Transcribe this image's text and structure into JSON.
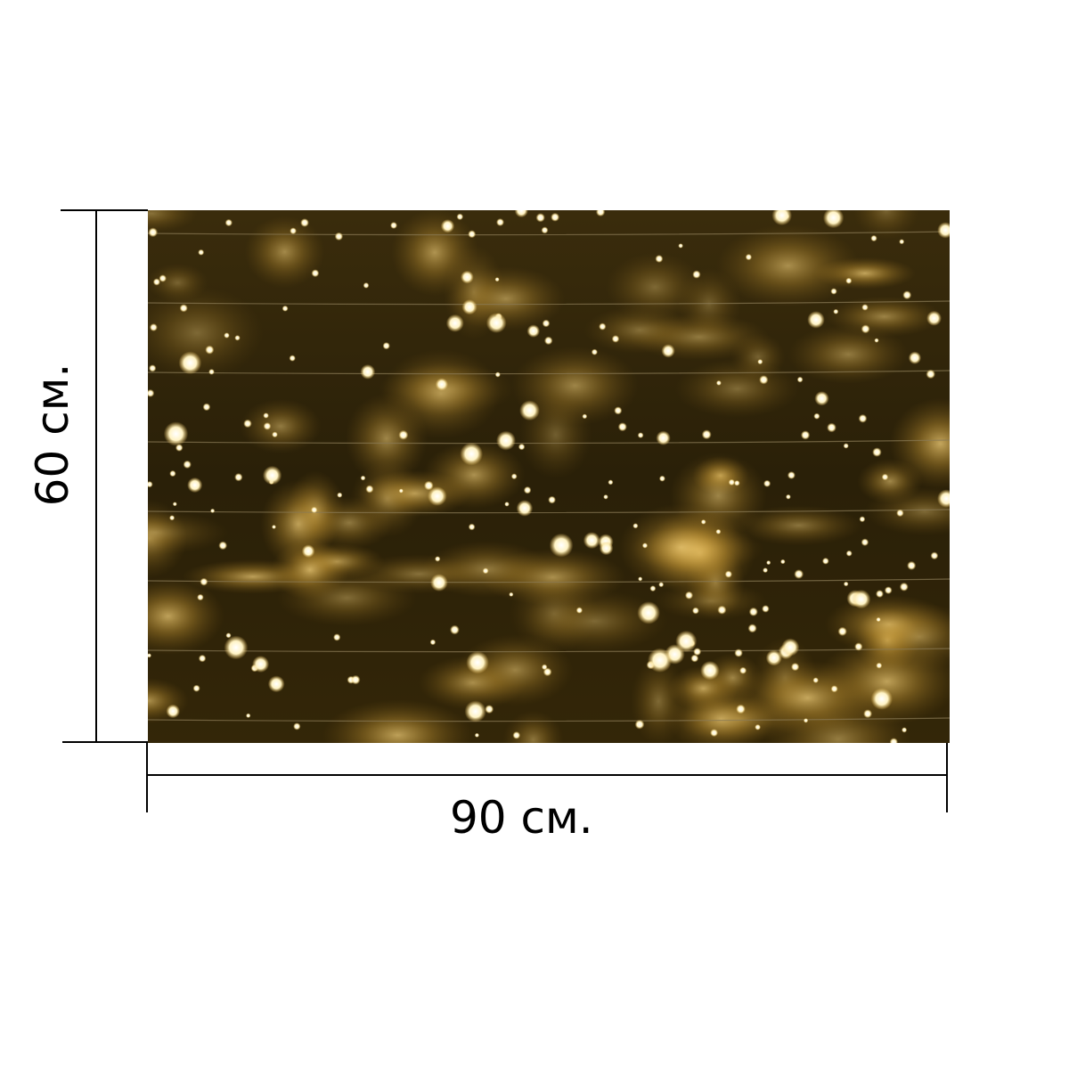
{
  "dimensions": {
    "width_label": "90 см.",
    "height_label": "60 см."
  },
  "photo": {
    "subject": "warm-white-led-curtain-lights",
    "colors": {
      "background": "#2a2008",
      "glow": "#d8a63a",
      "bulb": "#fff3c4",
      "wire": "#8a7a55"
    }
  },
  "colors": {
    "dimension_lines": "#000000",
    "text": "#000000"
  }
}
